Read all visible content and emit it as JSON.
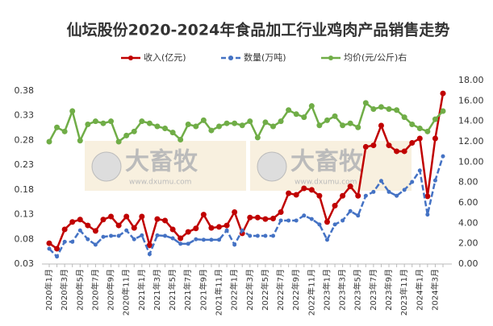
{
  "chart_data": {
    "type": "line",
    "title": "仙坛股份2020-2024年食品加工行业鸡肉产品销售走势",
    "annotations": [
      "大畜牧",
      "www.dxumu.com"
    ],
    "legend": "top",
    "grid": false,
    "categories": [
      "2020年1月",
      null,
      "2020年3月",
      null,
      "2020年5月",
      null,
      "2020年7月",
      null,
      "2020年9月",
      null,
      "2020年11月",
      null,
      "2021年1月",
      null,
      "2021年3月",
      null,
      "2021年5月",
      null,
      "2021年7月",
      null,
      "2021年9月",
      null,
      "2021年11月",
      null,
      "2022年1月",
      null,
      "2022年3月",
      null,
      "2022年5月",
      null,
      "2022年7月",
      null,
      "2022年9月",
      null,
      "2022年11月",
      null,
      "2023年1月",
      null,
      "2023年3月",
      null,
      "2023年5月",
      null,
      "2023年7月",
      null,
      "2023年9月",
      null,
      "2023年11月",
      null,
      "2024年1月",
      null,
      "2024年3月",
      null
    ],
    "ylim": [
      0.03,
      0.38
    ],
    "yticks": [
      0.03,
      0.08,
      0.13,
      0.18,
      0.23,
      0.28,
      0.33,
      0.38
    ],
    "y2lim": [
      0,
      18
    ],
    "y2ticks": [
      {
        "value": 0,
        "label": "0.00"
      },
      {
        "value": 2,
        "label": "2.00"
      },
      {
        "value": 4,
        "label": "4.00"
      },
      {
        "value": 6,
        "label": "6.00"
      },
      {
        "value": 8,
        "label": "8.00"
      },
      {
        "value": 10,
        "label": "10.00"
      },
      {
        "value": 12,
        "label": "12.00"
      },
      {
        "value": 14,
        "label": "14.00"
      },
      {
        "value": 16,
        "label": "16.00"
      },
      {
        "value": 18,
        "label": "18.00"
      }
    ],
    "series": [
      {
        "name": "收入(亿元)",
        "color": "#c00000",
        "values": [
          0.072,
          0.061,
          0.1,
          0.115,
          0.12,
          0.108,
          0.097,
          0.12,
          0.126,
          0.108,
          0.126,
          0.103,
          0.126,
          0.068,
          0.121,
          0.118,
          0.1,
          0.082,
          0.095,
          0.102,
          0.13,
          0.103,
          0.105,
          0.108,
          0.135,
          0.092,
          0.124,
          0.124,
          0.121,
          0.122,
          0.135,
          0.173,
          0.17,
          0.183,
          0.18,
          0.168,
          0.115,
          0.148,
          0.168,
          0.187,
          0.168,
          0.267,
          0.27,
          0.31,
          0.27,
          0.258,
          0.258,
          0.275,
          0.284,
          0.167,
          0.284,
          0.375
        ]
      },
      {
        "name": "数量(万吨)",
        "color": "#4472c4",
        "dashed": true,
        "values": [
          0.061,
          0.045,
          0.075,
          0.075,
          0.098,
          0.08,
          0.069,
          0.085,
          0.087,
          0.087,
          0.098,
          0.08,
          0.088,
          0.05,
          0.088,
          0.087,
          0.082,
          0.071,
          0.071,
          0.08,
          0.079,
          0.079,
          0.079,
          0.098,
          0.069,
          0.098,
          0.087,
          0.087,
          0.087,
          0.087,
          0.118,
          0.118,
          0.118,
          0.128,
          0.121,
          0.11,
          0.079,
          0.11,
          0.118,
          0.137,
          0.128,
          0.168,
          0.176,
          0.198,
          0.176,
          0.168,
          0.18,
          0.196,
          0.219,
          0.13,
          0.199,
          0.248
        ]
      },
      {
        "name": "均价(元/公斤)右",
        "color": "#70ad47",
        "axis": "y2",
        "values": [
          12.0,
          13.4,
          13.0,
          15.0,
          12.1,
          13.7,
          14.0,
          13.8,
          14.0,
          12.0,
          12.6,
          13.0,
          14.0,
          13.8,
          13.5,
          13.3,
          12.9,
          12.2,
          13.7,
          13.5,
          14.1,
          13.1,
          13.5,
          13.8,
          13.8,
          13.6,
          14.0,
          12.4,
          13.9,
          13.5,
          14.0,
          15.1,
          14.7,
          14.4,
          15.5,
          13.6,
          14.1,
          14.5,
          13.6,
          13.8,
          13.4,
          15.8,
          15.2,
          15.4,
          15.2,
          15.1,
          14.4,
          13.7,
          13.3,
          13.0,
          14.2,
          15.0
        ]
      }
    ]
  }
}
